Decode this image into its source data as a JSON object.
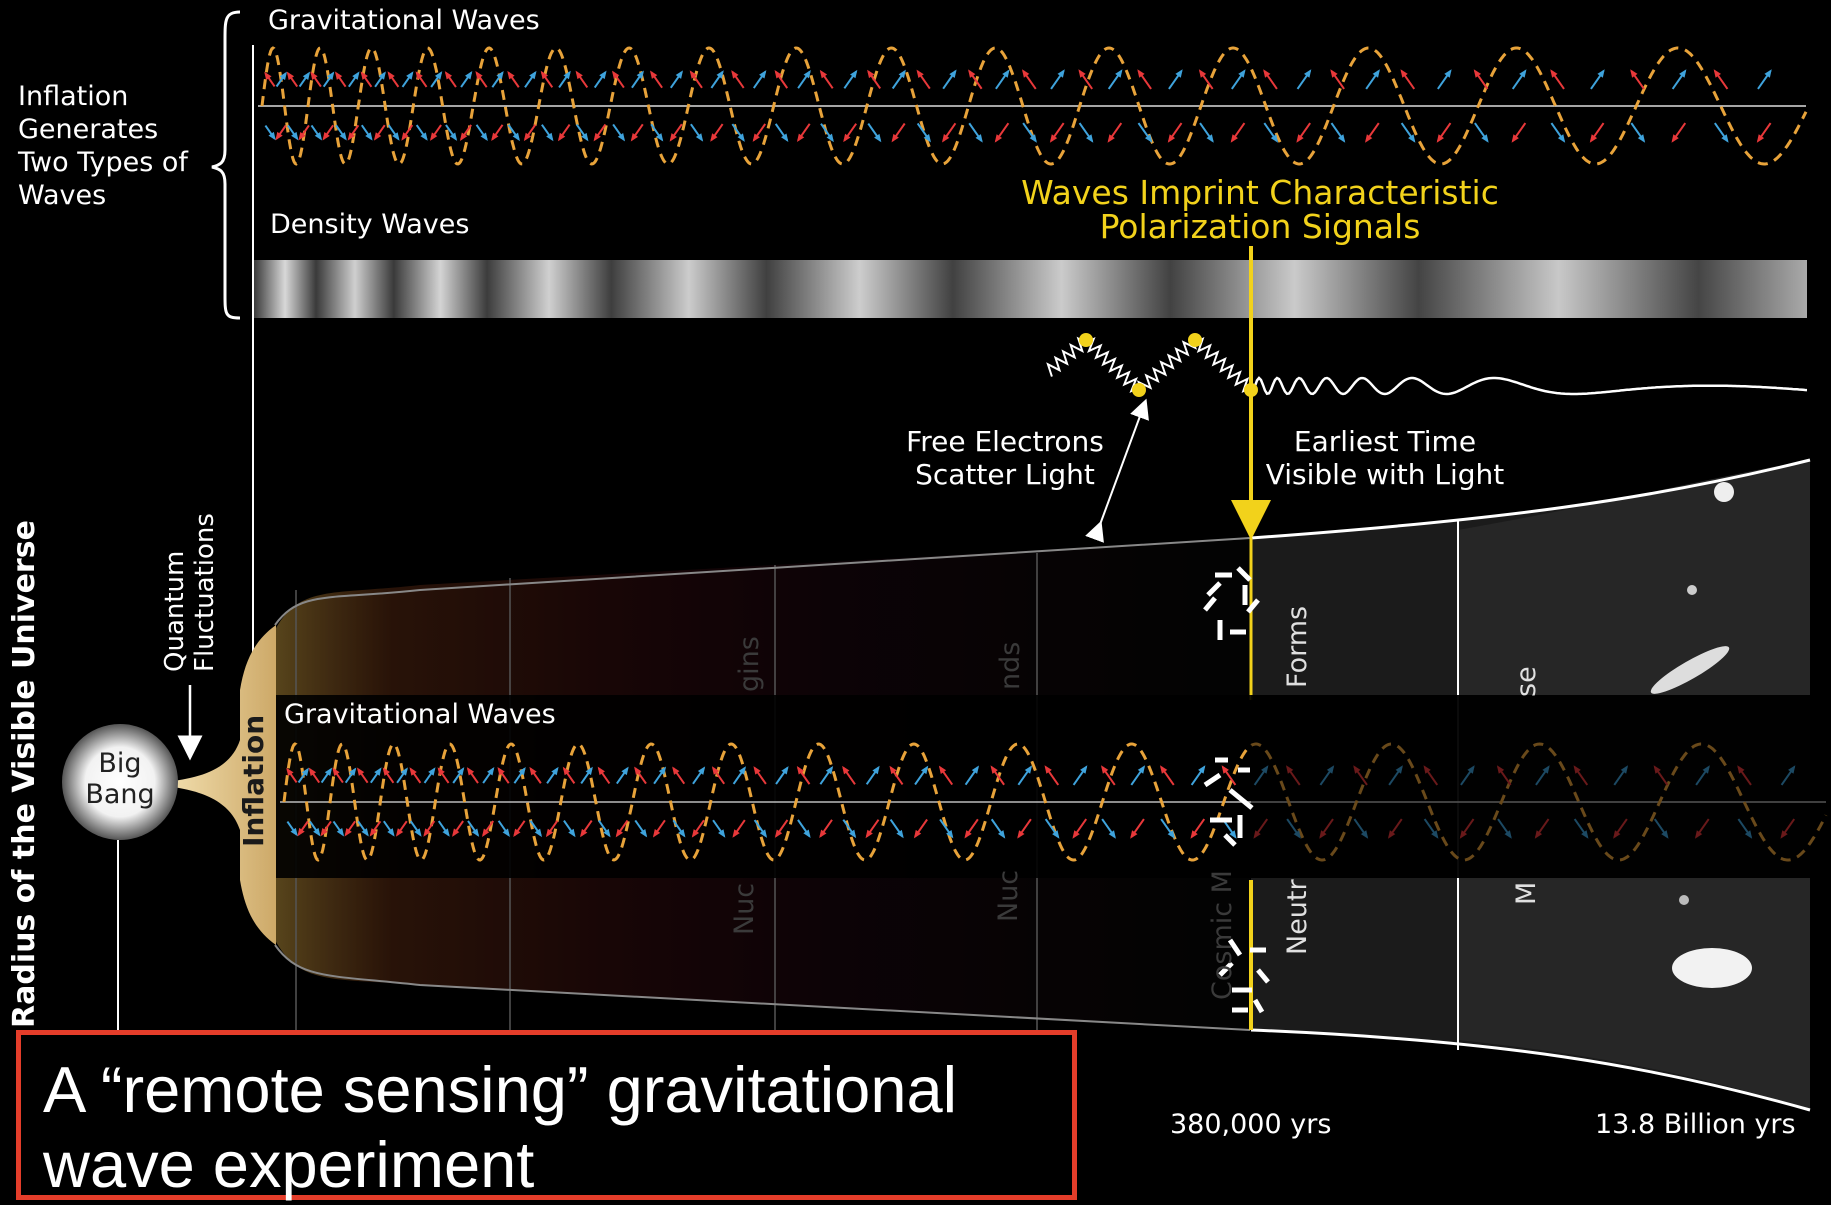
{
  "labels": {
    "gw_top": "Gravitational Waves",
    "inflation_generates": [
      "Inflation",
      "Generates",
      "Two Types of",
      "Waves"
    ],
    "density_waves": "Density Waves",
    "waves_imprint": [
      "Waves Imprint Characteristic",
      "Polarization Signals"
    ],
    "free_electrons": [
      "Free Electrons",
      "Scatter Light"
    ],
    "earliest_time": [
      "Earliest Time",
      "Visible with Light"
    ],
    "quantum": [
      "Quantum",
      "Fluctuations"
    ],
    "big_bang": [
      "Big",
      "Bang"
    ],
    "inflation": "Inflation",
    "radius": "Radius of the Visible Universe",
    "gw_inset": "Gravitational Waves",
    "time_380k": "380,000 yrs",
    "time_13_8": "13.8 Billion yrs",
    "faded_neutral": "Neutr",
    "faded_forms": "Forms",
    "faded_cosmic": "Cosmic M",
    "faded_nuc1": "Nuc",
    "faded_nuc2": "Nuc",
    "faded_gins": "gins",
    "faded_nds": "nds",
    "faded_se": "se",
    "faded_m": "M"
  },
  "callout": {
    "lines": [
      "A “remote sensing” gravitational",
      "wave experiment"
    ]
  },
  "colors": {
    "wave": "#e8a33a",
    "arrow_red": "#e8383a",
    "arrow_blue": "#3fa3dc",
    "highlight": "#f2d21b",
    "callout_border": "#e43d2a"
  }
}
